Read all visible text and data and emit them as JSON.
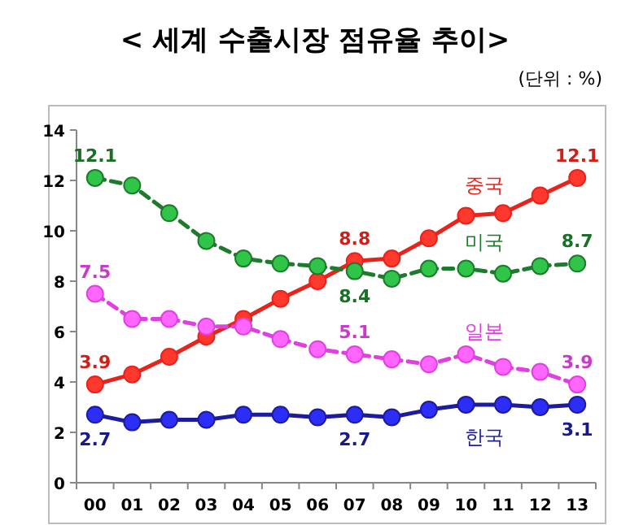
{
  "chart_data": {
    "type": "line",
    "title": "< 세계 수출시장 점유율 추이>",
    "annotations": [
      "(단위 : %)"
    ],
    "categories": [
      "00",
      "01",
      "02",
      "03",
      "04",
      "05",
      "06",
      "07",
      "08",
      "09",
      "10",
      "11",
      "12",
      "13"
    ],
    "ylim": [
      0,
      14
    ],
    "yticks": [
      0,
      2,
      4,
      6,
      8,
      10,
      12,
      14
    ],
    "grid": false,
    "marker": "circle",
    "series": [
      {
        "name": "중국",
        "color": "#e8231c",
        "line_style": "solid",
        "values": [
          3.9,
          4.3,
          5.0,
          5.8,
          6.5,
          7.3,
          8.0,
          8.8,
          8.9,
          9.7,
          10.6,
          10.7,
          11.4,
          12.1
        ],
        "value_labels": [
          "3.9",
          null,
          null,
          null,
          null,
          null,
          null,
          "8.8",
          null,
          null,
          null,
          null,
          null,
          "12.1"
        ]
      },
      {
        "name": "미국",
        "color": "#1e7b2e",
        "line_style": "dashed",
        "values": [
          12.1,
          11.8,
          10.7,
          9.6,
          8.9,
          8.7,
          8.6,
          8.4,
          8.1,
          8.5,
          8.5,
          8.3,
          8.6,
          8.7
        ],
        "value_labels": [
          "12.1",
          null,
          null,
          null,
          null,
          null,
          null,
          "8.4",
          null,
          null,
          null,
          null,
          null,
          "8.7"
        ]
      },
      {
        "name": "일본",
        "color": "#e040e0",
        "line_style": "dashed",
        "values": [
          7.5,
          6.5,
          6.5,
          6.2,
          6.2,
          5.7,
          5.3,
          5.1,
          4.9,
          4.7,
          5.1,
          4.6,
          4.4,
          3.9
        ],
        "value_labels": [
          "7.5",
          null,
          null,
          null,
          null,
          null,
          null,
          "5.1",
          null,
          null,
          null,
          null,
          null,
          "3.9"
        ]
      },
      {
        "name": "한국",
        "color": "#1c1c9c",
        "line_style": "solid",
        "values": [
          2.7,
          2.4,
          2.5,
          2.5,
          2.7,
          2.7,
          2.6,
          2.7,
          2.6,
          2.9,
          3.1,
          3.1,
          3.0,
          3.1
        ],
        "value_labels": [
          "2.7",
          null,
          null,
          null,
          null,
          null,
          null,
          "2.7",
          null,
          null,
          null,
          null,
          null,
          "3.1"
        ]
      }
    ]
  }
}
